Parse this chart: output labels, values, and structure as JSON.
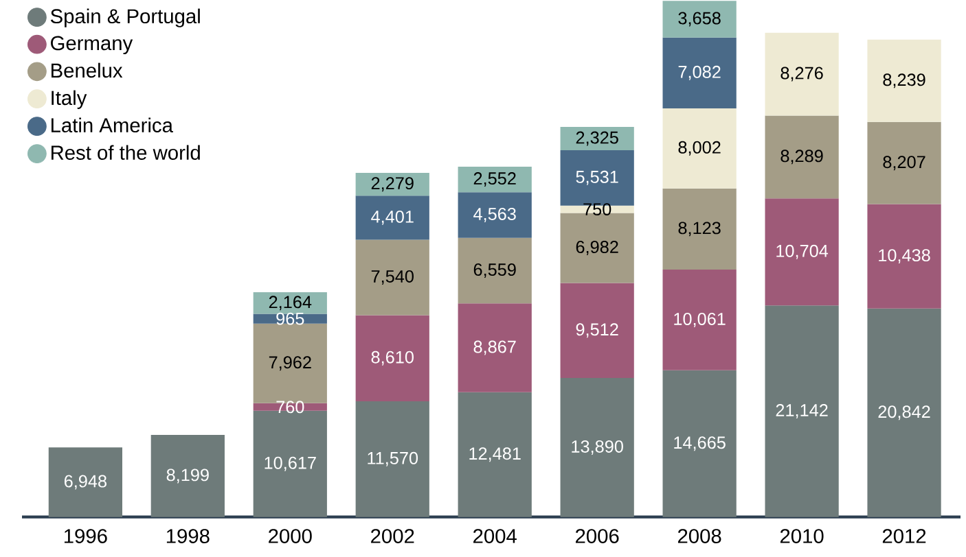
{
  "chart_data": {
    "type": "bar",
    "stacked": true,
    "legend": "top left",
    "categories": [
      "1996",
      "1998",
      "2000",
      "2002",
      "2004",
      "2006",
      "2008",
      "2010",
      "2012"
    ],
    "series": [
      {
        "name": "Spain & Portugal",
        "color": "#6e7b7a",
        "values": [
          6948,
          8199,
          10617,
          11570,
          12481,
          13890,
          14665,
          21142,
          20842
        ],
        "value_labels": [
          "6,948",
          "8,199",
          "10,617",
          "11,570",
          "12,481",
          "13,890",
          "14,665",
          "21,142",
          "20,842"
        ]
      },
      {
        "name": "Germany",
        "color": "#9e5a78",
        "values": [
          null,
          null,
          760,
          8610,
          8867,
          9512,
          10061,
          10704,
          10438
        ],
        "value_labels": [
          null,
          null,
          "760",
          "8,610",
          "8,867",
          "9,512",
          "10,061",
          "10,704",
          "10,438"
        ]
      },
      {
        "name": "Benelux",
        "color": "#a49d87",
        "values": [
          null,
          null,
          7962,
          7540,
          6559,
          6982,
          8123,
          8289,
          8207
        ],
        "value_labels": [
          null,
          null,
          "7,962",
          "7,540",
          "6,559",
          "6,982",
          "8,123",
          "8,289",
          "8,207"
        ]
      },
      {
        "name": "Italy",
        "color": "#eeead3",
        "values": [
          null,
          null,
          null,
          null,
          null,
          750,
          8002,
          8276,
          8239
        ],
        "value_labels": [
          null,
          null,
          null,
          null,
          null,
          "750",
          "8,002",
          "8,276",
          "8,239"
        ]
      },
      {
        "name": "Latin America",
        "color": "#4a6a88",
        "values": [
          null,
          null,
          965,
          4401,
          4563,
          5531,
          7082,
          null,
          null
        ],
        "value_labels": [
          null,
          null,
          "965",
          "4,401",
          "4,563",
          "5,531",
          "7,082",
          null,
          null
        ]
      },
      {
        "name": "Rest of the world",
        "color": "#8fb8b0",
        "values": [
          null,
          null,
          2164,
          2279,
          2552,
          2325,
          3658,
          null,
          null
        ],
        "value_labels": [
          null,
          null,
          "2,164",
          "2,279",
          "2,552",
          "2,325",
          "3,658",
          null,
          null
        ]
      }
    ]
  }
}
